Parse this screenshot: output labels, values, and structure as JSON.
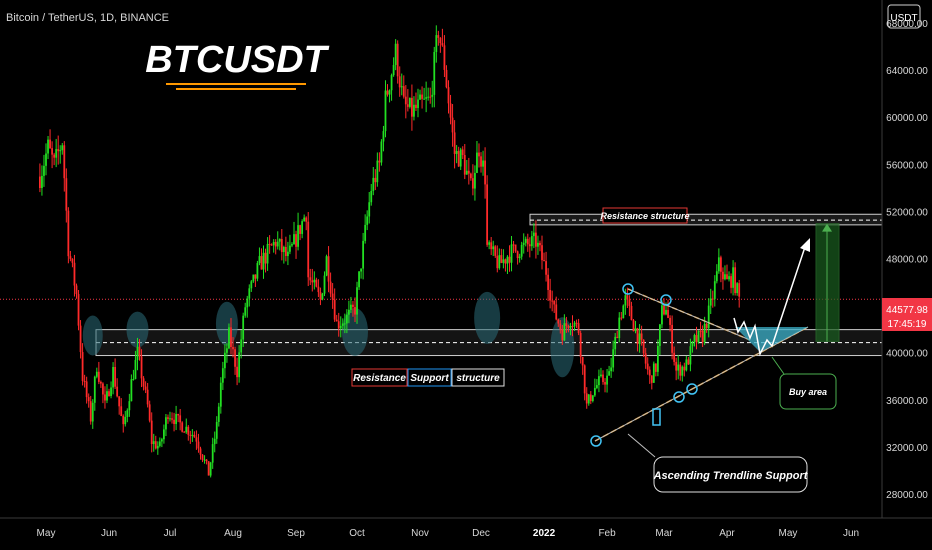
{
  "header": {
    "symbol_line": "Bitcoin / TetherUS, 1D, BINANCE",
    "currency_badge": "USDT"
  },
  "chart_data": {
    "type": "candlestick",
    "title": "BTCUSDT",
    "ylim": [
      26000,
      70000
    ],
    "y_ticks": [
      {
        "value": 68000,
        "label": "68000.00"
      },
      {
        "value": 64000,
        "label": "64000.00"
      },
      {
        "value": 60000,
        "label": "60000.00"
      },
      {
        "value": 56000,
        "label": "56000.00"
      },
      {
        "value": 52000,
        "label": "52000.00"
      },
      {
        "value": 48000,
        "label": "48000.00"
      },
      {
        "value": 40000,
        "label": "40000.00"
      },
      {
        "value": 36000,
        "label": "36000.00"
      },
      {
        "value": 32000,
        "label": "32000.00"
      },
      {
        "value": 28000,
        "label": "28000.00"
      }
    ],
    "x_ticks": [
      "May",
      "Jun",
      "Jul",
      "Aug",
      "Sep",
      "Oct",
      "Nov",
      "Dec",
      "2022",
      "Feb",
      "Mar",
      "Apr",
      "May",
      "Jun"
    ],
    "last_price": "44577.98",
    "countdown": "17:45:19",
    "close_path": [
      [
        "2021-04-28",
        55000
      ],
      [
        "2021-05-02",
        57500
      ],
      [
        "2021-05-05",
        56000
      ],
      [
        "2021-05-09",
        58000
      ],
      [
        "2021-05-12",
        49000
      ],
      [
        "2021-05-16",
        45000
      ],
      [
        "2021-05-19",
        38000
      ],
      [
        "2021-05-23",
        34500
      ],
      [
        "2021-05-26",
        39000
      ],
      [
        "2021-05-30",
        35500
      ],
      [
        "2021-06-03",
        38500
      ],
      [
        "2021-06-08",
        33500
      ],
      [
        "2021-06-12",
        37500
      ],
      [
        "2021-06-15",
        40000
      ],
      [
        "2021-06-20",
        35500
      ],
      [
        "2021-06-22",
        32500
      ],
      [
        "2021-06-26",
        32000
      ],
      [
        "2021-06-30",
        35000
      ],
      [
        "2021-07-06",
        34000
      ],
      [
        "2021-07-10",
        33500
      ],
      [
        "2021-07-14",
        32800
      ],
      [
        "2021-07-20",
        29800
      ],
      [
        "2021-07-24",
        33800
      ],
      [
        "2021-07-26",
        37500
      ],
      [
        "2021-07-30",
        41500
      ],
      [
        "2021-08-03",
        38500
      ],
      [
        "2021-08-07",
        44000
      ],
      [
        "2021-08-14",
        47500
      ],
      [
        "2021-08-22",
        49500
      ],
      [
        "2021-08-28",
        48000
      ],
      [
        "2021-09-06",
        52000
      ],
      [
        "2021-09-07",
        46500
      ],
      [
        "2021-09-13",
        44500
      ],
      [
        "2021-09-16",
        48000
      ],
      [
        "2021-09-21",
        42500
      ],
      [
        "2021-09-26",
        43000
      ],
      [
        "2021-09-30",
        43800
      ],
      [
        "2021-10-04",
        49000
      ],
      [
        "2021-10-08",
        54000
      ],
      [
        "2021-10-12",
        56000
      ],
      [
        "2021-10-15",
        61500
      ],
      [
        "2021-10-20",
        65500
      ],
      [
        "2021-10-24",
        61000
      ],
      [
        "2021-10-28",
        60500
      ],
      [
        "2021-11-01",
        61000
      ],
      [
        "2021-11-06",
        61500
      ],
      [
        "2021-11-10",
        67500
      ],
      [
        "2021-11-13",
        64500
      ],
      [
        "2021-11-18",
        57000
      ],
      [
        "2021-11-22",
        56500
      ],
      [
        "2021-11-26",
        54000
      ],
      [
        "2021-11-30",
        57500
      ],
      [
        "2021-12-03",
        55000
      ],
      [
        "2021-12-04",
        49000
      ],
      [
        "2021-12-10",
        47500
      ],
      [
        "2021-12-15",
        48500
      ],
      [
        "2021-12-22",
        49000
      ],
      [
        "2021-12-28",
        49500
      ],
      [
        "2022-01-02",
        47000
      ],
      [
        "2022-01-06",
        43500
      ],
      [
        "2022-01-10",
        41800
      ],
      [
        "2022-01-14",
        43000
      ],
      [
        "2022-01-18",
        42000
      ],
      [
        "2022-01-22",
        35500
      ],
      [
        "2022-01-25",
        36800
      ],
      [
        "2022-01-28",
        37500
      ],
      [
        "2022-02-02",
        38000
      ],
      [
        "2022-02-07",
        43000
      ],
      [
        "2022-02-10",
        44500
      ],
      [
        "2022-02-14",
        42500
      ],
      [
        "2022-02-18",
        40500
      ],
      [
        "2022-02-22",
        37800
      ],
      [
        "2022-02-25",
        38800
      ],
      [
        "2022-02-28",
        43500
      ],
      [
        "2022-03-02",
        44000
      ],
      [
        "2022-03-07",
        38500
      ],
      [
        "2022-03-12",
        39000
      ],
      [
        "2022-03-16",
        41000
      ],
      [
        "2022-03-20",
        41500
      ],
      [
        "2022-03-24",
        44000
      ],
      [
        "2022-03-28",
        47500
      ],
      [
        "2022-04-01",
        46000
      ],
      [
        "2022-04-04",
        46500
      ],
      [
        "2022-04-07",
        44578
      ]
    ],
    "annotations": {
      "resistance_top": {
        "label": "Resistance structure",
        "value": 51300
      },
      "support_band": {
        "labels": [
          "Resistance",
          "Support",
          "structure"
        ],
        "upper": 42000,
        "lower": 40000
      },
      "trendline_label": "Ascending Trendline Support",
      "buy_label": "Buy area",
      "target_top": 51000,
      "target_bottom": 41000
    }
  }
}
